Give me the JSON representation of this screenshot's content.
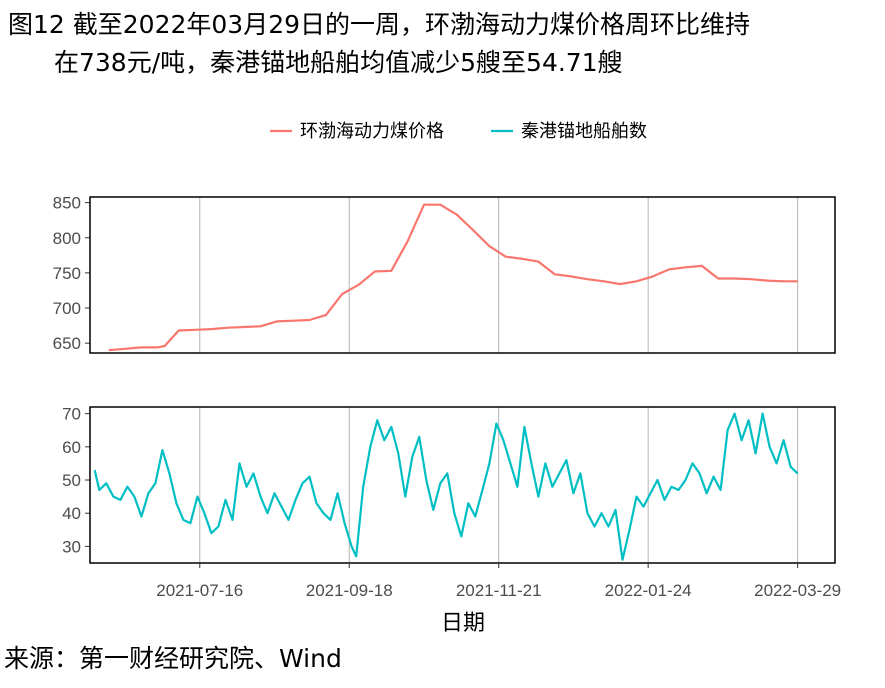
{
  "caption": {
    "line1": "图12  截至2022年03月29日的一周，环渤海动力煤价格周环比维持",
    "line2": "在738元/吨，秦港锚地船舶均值减少5艘至54.71艘"
  },
  "source": "来源：第一财经研究院、Wind",
  "colors": {
    "coal": "#F8766D",
    "ships": "#00BFC4",
    "grid": "#b3b3b3",
    "frame": "#000000"
  },
  "chart_data": [
    {
      "type": "line",
      "panel": "top",
      "xlabel": "日期",
      "x_ticks": [
        "2021-07-16",
        "2021-09-18",
        "2021-11-21",
        "2022-01-24",
        "2022-03-29"
      ],
      "y_ticks": [
        650,
        700,
        750,
        800,
        850
      ],
      "ylim": [
        636,
        858
      ],
      "xlim": [
        "2021-05-30",
        "2022-04-14"
      ],
      "legend": "top",
      "series": [
        {
          "name": "环渤海动力煤价格",
          "color": "#F8766D",
          "points": [
            [
              "2021-06-07",
              640
            ],
            [
              "2021-06-14",
              642
            ],
            [
              "2021-06-21",
              644
            ],
            [
              "2021-06-28",
              644
            ],
            [
              "2021-07-01",
              646
            ],
            [
              "2021-07-07",
              668
            ],
            [
              "2021-07-14",
              669
            ],
            [
              "2021-07-21",
              670
            ],
            [
              "2021-07-28",
              672
            ],
            [
              "2021-08-04",
              673
            ],
            [
              "2021-08-11",
              674
            ],
            [
              "2021-08-18",
              681
            ],
            [
              "2021-08-25",
              682
            ],
            [
              "2021-09-01",
              683
            ],
            [
              "2021-09-08",
              690
            ],
            [
              "2021-09-15",
              720
            ],
            [
              "2021-09-22",
              733
            ],
            [
              "2021-09-29",
              752
            ],
            [
              "2021-10-06",
              753
            ],
            [
              "2021-10-13",
              795
            ],
            [
              "2021-10-20",
              847
            ],
            [
              "2021-10-27",
              847
            ],
            [
              "2021-11-03",
              833
            ],
            [
              "2021-11-10",
              811
            ],
            [
              "2021-11-17",
              788
            ],
            [
              "2021-11-24",
              773
            ],
            [
              "2021-12-01",
              770
            ],
            [
              "2021-12-08",
              766
            ],
            [
              "2021-12-15",
              748
            ],
            [
              "2021-12-22",
              745
            ],
            [
              "2021-12-29",
              741
            ],
            [
              "2022-01-05",
              738
            ],
            [
              "2022-01-12",
              734
            ],
            [
              "2022-01-19",
              738
            ],
            [
              "2022-01-26",
              745
            ],
            [
              "2022-02-02",
              755
            ],
            [
              "2022-02-09",
              758
            ],
            [
              "2022-02-16",
              760
            ],
            [
              "2022-02-23",
              742
            ],
            [
              "2022-03-02",
              742
            ],
            [
              "2022-03-09",
              741
            ],
            [
              "2022-03-16",
              739
            ],
            [
              "2022-03-23",
              738
            ],
            [
              "2022-03-29",
              738
            ]
          ]
        }
      ]
    },
    {
      "type": "line",
      "panel": "bottom",
      "xlabel": "日期",
      "x_ticks": [
        "2021-07-16",
        "2021-09-18",
        "2021-11-21",
        "2022-01-24",
        "2022-03-29"
      ],
      "y_ticks": [
        30,
        40,
        50,
        60,
        70
      ],
      "ylim": [
        25,
        72
      ],
      "xlim": [
        "2021-05-30",
        "2022-04-14"
      ],
      "series": [
        {
          "name": "秦港锚地船舶数",
          "color": "#00BFC4",
          "points": [
            [
              "2021-06-01",
              53
            ],
            [
              "2021-06-03",
              47
            ],
            [
              "2021-06-06",
              49
            ],
            [
              "2021-06-09",
              45
            ],
            [
              "2021-06-12",
              44
            ],
            [
              "2021-06-15",
              48
            ],
            [
              "2021-06-18",
              45
            ],
            [
              "2021-06-21",
              39
            ],
            [
              "2021-06-24",
              46
            ],
            [
              "2021-06-27",
              49
            ],
            [
              "2021-06-30",
              59
            ],
            [
              "2021-07-03",
              52
            ],
            [
              "2021-07-06",
              43
            ],
            [
              "2021-07-09",
              38
            ],
            [
              "2021-07-12",
              37
            ],
            [
              "2021-07-15",
              45
            ],
            [
              "2021-07-18",
              40
            ],
            [
              "2021-07-21",
              34
            ],
            [
              "2021-07-24",
              36
            ],
            [
              "2021-07-27",
              44
            ],
            [
              "2021-07-30",
              38
            ],
            [
              "2021-08-02",
              55
            ],
            [
              "2021-08-05",
              48
            ],
            [
              "2021-08-08",
              52
            ],
            [
              "2021-08-11",
              45
            ],
            [
              "2021-08-14",
              40
            ],
            [
              "2021-08-17",
              46
            ],
            [
              "2021-08-20",
              42
            ],
            [
              "2021-08-23",
              38
            ],
            [
              "2021-08-26",
              44
            ],
            [
              "2021-08-29",
              49
            ],
            [
              "2021-09-01",
              51
            ],
            [
              "2021-09-04",
              43
            ],
            [
              "2021-09-07",
              40
            ],
            [
              "2021-09-10",
              38
            ],
            [
              "2021-09-13",
              46
            ],
            [
              "2021-09-16",
              37
            ],
            [
              "2021-09-19",
              30
            ],
            [
              "2021-09-21",
              27
            ],
            [
              "2021-09-24",
              48
            ],
            [
              "2021-09-27",
              60
            ],
            [
              "2021-09-30",
              68
            ],
            [
              "2021-10-03",
              62
            ],
            [
              "2021-10-06",
              66
            ],
            [
              "2021-10-09",
              58
            ],
            [
              "2021-10-12",
              45
            ],
            [
              "2021-10-15",
              57
            ],
            [
              "2021-10-18",
              63
            ],
            [
              "2021-10-21",
              50
            ],
            [
              "2021-10-24",
              41
            ],
            [
              "2021-10-27",
              49
            ],
            [
              "2021-10-30",
              52
            ],
            [
              "2021-11-02",
              40
            ],
            [
              "2021-11-05",
              33
            ],
            [
              "2021-11-08",
              43
            ],
            [
              "2021-11-11",
              39
            ],
            [
              "2021-11-14",
              47
            ],
            [
              "2021-11-17",
              55
            ],
            [
              "2021-11-20",
              67
            ],
            [
              "2021-11-23",
              62
            ],
            [
              "2021-11-26",
              55
            ],
            [
              "2021-11-29",
              48
            ],
            [
              "2021-12-02",
              66
            ],
            [
              "2021-12-05",
              55
            ],
            [
              "2021-12-08",
              45
            ],
            [
              "2021-12-11",
              55
            ],
            [
              "2021-12-14",
              48
            ],
            [
              "2021-12-17",
              52
            ],
            [
              "2021-12-20",
              56
            ],
            [
              "2021-12-23",
              46
            ],
            [
              "2021-12-26",
              52
            ],
            [
              "2021-12-29",
              40
            ],
            [
              "2022-01-01",
              36
            ],
            [
              "2022-01-04",
              40
            ],
            [
              "2022-01-07",
              36
            ],
            [
              "2022-01-10",
              41
            ],
            [
              "2022-01-13",
              26
            ],
            [
              "2022-01-16",
              35
            ],
            [
              "2022-01-19",
              45
            ],
            [
              "2022-01-22",
              42
            ],
            [
              "2022-01-25",
              46
            ],
            [
              "2022-01-28",
              50
            ],
            [
              "2022-01-31",
              44
            ],
            [
              "2022-02-03",
              48
            ],
            [
              "2022-02-06",
              47
            ],
            [
              "2022-02-09",
              50
            ],
            [
              "2022-02-12",
              55
            ],
            [
              "2022-02-15",
              52
            ],
            [
              "2022-02-18",
              46
            ],
            [
              "2022-02-21",
              51
            ],
            [
              "2022-02-24",
              47
            ],
            [
              "2022-02-27",
              65
            ],
            [
              "2022-03-02",
              70
            ],
            [
              "2022-03-05",
              62
            ],
            [
              "2022-03-08",
              68
            ],
            [
              "2022-03-11",
              58
            ],
            [
              "2022-03-14",
              70
            ],
            [
              "2022-03-17",
              60
            ],
            [
              "2022-03-20",
              55
            ],
            [
              "2022-03-23",
              62
            ],
            [
              "2022-03-26",
              54
            ],
            [
              "2022-03-29",
              52
            ]
          ]
        }
      ]
    }
  ]
}
